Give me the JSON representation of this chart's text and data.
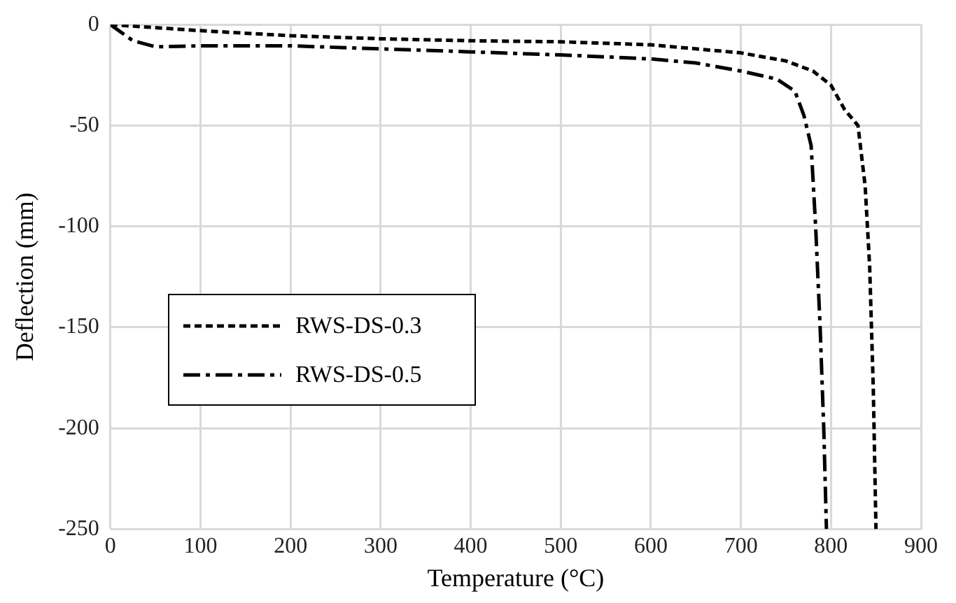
{
  "chart_data": {
    "type": "line",
    "xlabel": "Temperature (°C)",
    "ylabel": "Deflection (mm)",
    "xlim": [
      0,
      900
    ],
    "xticks": [
      0,
      100,
      200,
      300,
      400,
      500,
      600,
      700,
      800,
      900
    ],
    "ylim": [
      -250,
      0
    ],
    "yticks": [
      -250,
      -200,
      -150,
      -100,
      -50,
      0
    ],
    "grid": true,
    "legend": "left",
    "marker": "none",
    "series": [
      {
        "name": "RWS-DS-0.3",
        "color": "#000000",
        "line_style": "dotted",
        "x": [
          0,
          100,
          200,
          300,
          400,
          500,
          600,
          700,
          750,
          780,
          800,
          815,
          830,
          838,
          843,
          847,
          850
        ],
        "values": [
          0,
          -3,
          -5.5,
          -7,
          -8,
          -8.5,
          -10,
          -14,
          -18,
          -23,
          -30,
          -42,
          -50,
          -80,
          -120,
          -180,
          -250
        ]
      },
      {
        "name": "RWS-DS-0.5",
        "color": "#000000",
        "line_style": "dashed",
        "x": [
          0,
          25,
          50,
          100,
          200,
          300,
          400,
          500,
          600,
          650,
          700,
          740,
          760,
          770,
          778,
          783,
          788,
          792,
          795
        ],
        "values": [
          0,
          -8,
          -11,
          -10.5,
          -10.5,
          -12,
          -13.5,
          -15,
          -17,
          -19,
          -23,
          -27,
          -33,
          -45,
          -60,
          -100,
          -150,
          -200,
          -250
        ]
      }
    ]
  }
}
